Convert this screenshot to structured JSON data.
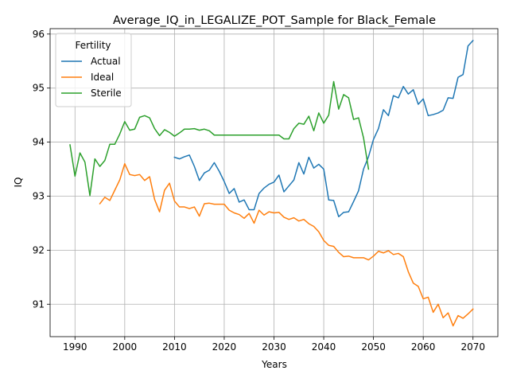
{
  "chart_data": {
    "type": "line",
    "title": "Average_IQ_in_LEGALIZE_POT_Sample for Black_Female",
    "xlabel": "Years",
    "ylabel": "IQ",
    "xlim": [
      1985,
      2075
    ],
    "ylim": [
      90.4,
      96.1
    ],
    "xticks": [
      1990,
      2000,
      2010,
      2020,
      2030,
      2040,
      2050,
      2060,
      2070
    ],
    "yticks": [
      91,
      92,
      93,
      94,
      95,
      96
    ],
    "grid": true,
    "legend": {
      "title": "Fertility",
      "placement": "upper-left"
    },
    "series": [
      {
        "name": "Actual",
        "color": "#1f77b4",
        "x": [
          2010,
          2011,
          2012,
          2013,
          2014,
          2015,
          2016,
          2017,
          2018,
          2019,
          2020,
          2021,
          2022,
          2023,
          2024,
          2025,
          2026,
          2027,
          2028,
          2029,
          2030,
          2031,
          2032,
          2033,
          2034,
          2035,
          2036,
          2037,
          2038,
          2039,
          2040,
          2041,
          2042,
          2043,
          2044,
          2045,
          2046,
          2047,
          2048,
          2049,
          2050,
          2051,
          2052,
          2053,
          2054,
          2055,
          2056,
          2057,
          2058,
          2059,
          2060,
          2061,
          2062,
          2063,
          2064,
          2065,
          2066,
          2067,
          2068,
          2069,
          2070
        ],
        "y": [
          93.72,
          93.69,
          93.73,
          93.76,
          93.55,
          93.29,
          93.43,
          93.48,
          93.62,
          93.46,
          93.27,
          93.05,
          93.14,
          92.89,
          92.93,
          92.75,
          92.75,
          93.05,
          93.15,
          93.22,
          93.26,
          93.39,
          93.08,
          93.19,
          93.3,
          93.62,
          93.41,
          93.72,
          93.52,
          93.59,
          93.5,
          92.93,
          92.92,
          92.62,
          92.7,
          92.71,
          92.9,
          93.1,
          93.5,
          93.73,
          94.05,
          94.25,
          94.6,
          94.49,
          94.86,
          94.82,
          95.03,
          94.89,
          94.97,
          94.7,
          94.8,
          94.49,
          94.51,
          94.54,
          94.59,
          94.82,
          94.81,
          95.2,
          95.25,
          95.78,
          95.88
        ]
      },
      {
        "name": "Ideal",
        "color": "#ff7f0e",
        "x": [
          1995,
          1996,
          1997,
          1998,
          1999,
          2000,
          2001,
          2002,
          2003,
          2004,
          2005,
          2006,
          2007,
          2008,
          2009,
          2010,
          2011,
          2012,
          2013,
          2014,
          2015,
          2016,
          2017,
          2018,
          2019,
          2020,
          2021,
          2022,
          2023,
          2024,
          2025,
          2026,
          2027,
          2028,
          2029,
          2030,
          2031,
          2032,
          2033,
          2034,
          2035,
          2036,
          2037,
          2038,
          2039,
          2040,
          2041,
          2042,
          2043,
          2044,
          2045,
          2046,
          2047,
          2048,
          2049,
          2050,
          2051,
          2052,
          2053,
          2054,
          2055,
          2056,
          2057,
          2058,
          2059,
          2060,
          2061,
          2062,
          2063,
          2064,
          2065,
          2066,
          2067,
          2068,
          2069,
          2070
        ],
        "y": [
          92.86,
          92.98,
          92.92,
          93.11,
          93.3,
          93.6,
          93.4,
          93.38,
          93.4,
          93.29,
          93.36,
          92.94,
          92.71,
          93.11,
          93.24,
          92.91,
          92.8,
          92.8,
          92.77,
          92.8,
          92.63,
          92.86,
          92.87,
          92.85,
          92.85,
          92.85,
          92.74,
          92.69,
          92.66,
          92.59,
          92.68,
          92.5,
          92.74,
          92.65,
          92.71,
          92.69,
          92.7,
          92.61,
          92.57,
          92.6,
          92.54,
          92.57,
          92.49,
          92.44,
          92.34,
          92.18,
          92.09,
          92.07,
          91.96,
          91.88,
          91.89,
          91.86,
          91.86,
          91.86,
          91.82,
          91.89,
          91.98,
          91.95,
          91.99,
          91.92,
          91.94,
          91.88,
          91.6,
          91.39,
          91.33,
          91.1,
          91.13,
          90.85,
          91.0,
          90.75,
          90.84,
          90.6,
          90.79,
          90.74,
          90.82,
          90.91
        ]
      },
      {
        "name": "Sterile",
        "color": "#2ca02c",
        "x": [
          1989,
          1990,
          1991,
          1992,
          1993,
          1994,
          1995,
          1996,
          1997,
          1998,
          1999,
          2000,
          2001,
          2002,
          2003,
          2004,
          2005,
          2006,
          2007,
          2008,
          2009,
          2010,
          2011,
          2012,
          2013,
          2014,
          2015,
          2016,
          2017,
          2018,
          2019,
          2020,
          2021,
          2022,
          2023,
          2024,
          2025,
          2026,
          2027,
          2028,
          2029,
          2030,
          2031,
          2032,
          2033,
          2034,
          2035,
          2036,
          2037,
          2038,
          2039,
          2040,
          2041,
          2042,
          2043,
          2044,
          2045,
          2046,
          2047,
          2048,
          2049
        ],
        "y": [
          93.95,
          93.37,
          93.8,
          93.63,
          93.01,
          93.69,
          93.55,
          93.66,
          93.96,
          93.96,
          94.15,
          94.38,
          94.22,
          94.24,
          94.46,
          94.49,
          94.45,
          94.25,
          94.12,
          94.23,
          94.18,
          94.11,
          94.17,
          94.24,
          94.24,
          94.25,
          94.22,
          94.24,
          94.21,
          94.13,
          94.13,
          94.13,
          94.13,
          94.13,
          94.13,
          94.13,
          94.13,
          94.13,
          94.13,
          94.13,
          94.13,
          94.13,
          94.13,
          94.06,
          94.06,
          94.25,
          94.35,
          94.33,
          94.48,
          94.21,
          94.54,
          94.35,
          94.5,
          95.12,
          94.61,
          94.88,
          94.82,
          94.42,
          94.45,
          94.08,
          93.5
        ]
      }
    ]
  }
}
